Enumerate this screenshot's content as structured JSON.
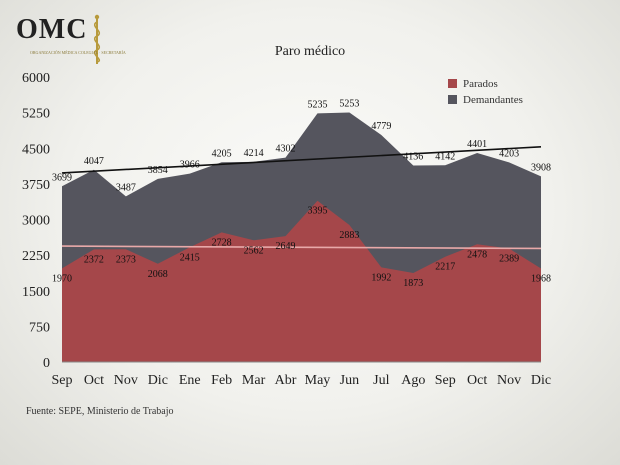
{
  "header": {
    "logo_text": "OMC",
    "logo_subtext": "ORGANIZACIÓN MÉDICA COLEGIAL · SECRETARÍA",
    "title": "Paro médico"
  },
  "footer": {
    "source": "Fuente: SEPE, Ministerio de Trabajo"
  },
  "colors": {
    "parados": "#a5474a",
    "demandantes": "#55555e",
    "trend_demandantes": "#111111",
    "trend_parados": "#e8a9a9"
  },
  "chart_data": {
    "type": "area",
    "title": "Paro médico",
    "categories": [
      "Sep",
      "Oct",
      "Nov",
      "Dic",
      "Ene",
      "Feb",
      "Mar",
      "Abr",
      "May",
      "Jun",
      "Jul",
      "Ago",
      "Sep",
      "Oct",
      "Nov",
      "Dic"
    ],
    "series": [
      {
        "name": "Parados",
        "values": [
          1970,
          2372,
          2373,
          2068,
          2415,
          2728,
          2562,
          2649,
          3395,
          2883,
          1992,
          1873,
          2217,
          2478,
          2389,
          1968
        ]
      },
      {
        "name": "Demandantes",
        "values": [
          3699,
          4047,
          3487,
          3854,
          3966,
          4205,
          4214,
          4302,
          5235,
          5253,
          4779,
          4136,
          4142,
          4401,
          4203,
          3908
        ]
      }
    ],
    "trendlines": [
      {
        "series": "Demandantes",
        "start": 3980,
        "end": 4530
      },
      {
        "series": "Parados",
        "start": 2440,
        "end": 2390
      }
    ],
    "yticks": [
      0,
      750,
      1500,
      2250,
      3000,
      3750,
      4500,
      5250,
      6000
    ],
    "ylim": [
      0,
      6000
    ],
    "legend": "top-right",
    "grid": false
  }
}
